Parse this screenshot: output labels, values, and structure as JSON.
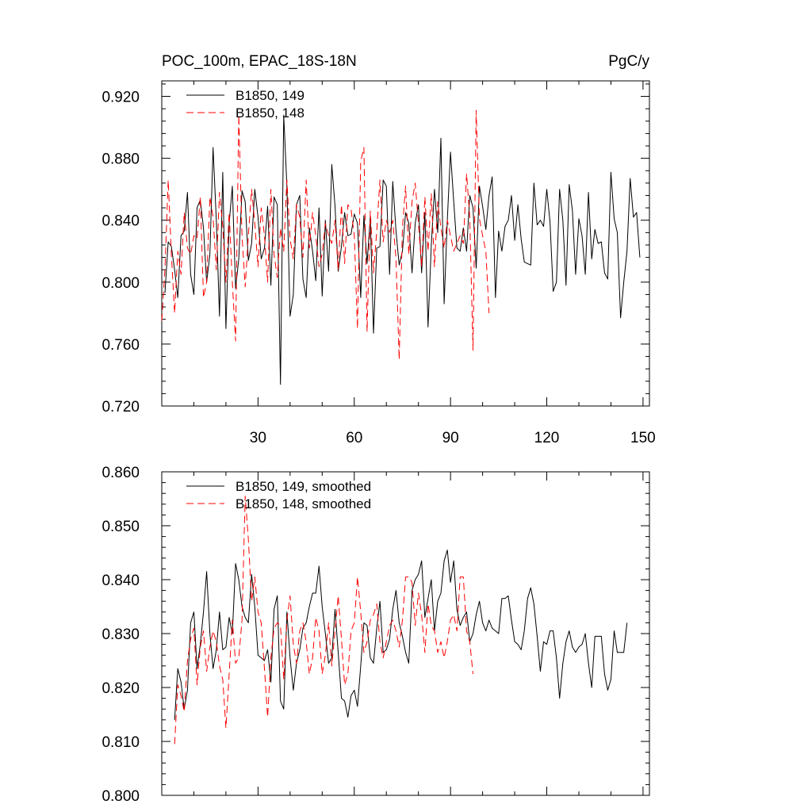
{
  "colors": {
    "s149": "#000000",
    "s148": "#ff0000"
  },
  "chart_data": [
    {
      "type": "line",
      "title_left": "POC_100m, EPAC_18S-18N",
      "title_right": "PgC/y",
      "xlabel": "",
      "ylabel": "",
      "xlim": [
        0,
        152
      ],
      "ylim": [
        0.72,
        0.93
      ],
      "xticks": [
        30,
        60,
        90,
        120,
        150
      ],
      "xtick_labels": [
        "30",
        "60",
        "90",
        "120",
        "150"
      ],
      "yticks": [
        0.72,
        0.76,
        0.8,
        0.84,
        0.88,
        0.92
      ],
      "ytick_labels": [
        "0.720",
        "0.760",
        "0.800",
        "0.840",
        "0.880",
        "0.920"
      ],
      "legend_position": "top-left",
      "series": [
        {
          "name": "B1850, 149",
          "dash": "solid",
          "x_start": 1,
          "values": [
            0.793,
            0.826,
            0.823,
            0.808,
            0.79,
            0.83,
            0.833,
            0.858,
            0.805,
            0.792,
            0.848,
            0.853,
            0.835,
            0.8,
            0.818,
            0.887,
            0.84,
            0.778,
            0.871,
            0.77,
            0.838,
            0.862,
            0.796,
            0.815,
            0.859,
            0.852,
            0.814,
            0.825,
            0.86,
            0.842,
            0.815,
            0.822,
            0.849,
            0.798,
            0.855,
            0.85,
            0.734,
            0.908,
            0.862,
            0.778,
            0.792,
            0.85,
            0.856,
            0.802,
            0.79,
            0.835,
            0.82,
            0.801,
            0.848,
            0.791,
            0.84,
            0.807,
            0.876,
            0.849,
            0.807,
            0.823,
            0.845,
            0.83,
            0.831,
            0.844,
            0.838,
            0.79,
            0.843,
            0.812,
            0.842,
            0.767,
            0.822,
            0.823,
            0.866,
            0.862,
            0.805,
            0.865,
            0.833,
            0.811,
            0.82,
            0.845,
            0.838,
            0.806,
            0.838,
            0.85,
            0.806,
            0.845,
            0.771,
            0.824,
            0.86,
            0.832,
            0.893,
            0.786,
            0.84,
            0.884,
            0.852,
            0.822,
            0.82,
            0.835,
            0.82,
            0.856,
            0.848,
            0.809,
            0.862,
            0.849,
            0.834,
            0.856,
            0.868,
            0.79,
            0.833,
            0.82,
            0.836,
            0.84,
            0.856,
            0.827,
            0.85,
            0.828,
            0.813,
            0.812,
            0.811,
            0.864,
            0.837,
            0.84,
            0.836,
            0.86,
            0.839,
            0.794,
            0.8,
            0.86,
            0.84,
            0.798,
            0.863,
            0.846,
            0.805,
            0.841,
            0.83,
            0.805,
            0.858,
            0.815,
            0.834,
            0.825,
            0.826,
            0.806,
            0.802,
            0.871,
            0.841,
            0.832,
            0.777,
            0.8,
            0.82,
            0.867,
            0.842,
            0.845,
            0.816
          ]
        },
        {
          "name": "B1850, 148",
          "dash": "dashed",
          "x_start": 0,
          "values": [
            0.775,
            0.808,
            0.866,
            0.818,
            0.78,
            0.82,
            0.805,
            0.845,
            0.822,
            0.818,
            0.83,
            0.828,
            0.855,
            0.79,
            0.8,
            0.855,
            0.842,
            0.808,
            0.858,
            0.836,
            0.8,
            0.845,
            0.8,
            0.762,
            0.908,
            0.83,
            0.797,
            0.83,
            0.86,
            0.838,
            0.81,
            0.848,
            0.83,
            0.8,
            0.86,
            0.818,
            0.803,
            0.835,
            0.82,
            0.866,
            0.828,
            0.815,
            0.85,
            0.842,
            0.816,
            0.866,
            0.822,
            0.845,
            0.83,
            0.81,
            0.818,
            0.838,
            0.83,
            0.825,
            0.84,
            0.808,
            0.85,
            0.812,
            0.85,
            0.847,
            0.83,
            0.77,
            0.878,
            0.887,
            0.768,
            0.846,
            0.806,
            0.833,
            0.866,
            0.826,
            0.84,
            0.832,
            0.84,
            0.815,
            0.75,
            0.835,
            0.862,
            0.818,
            0.852,
            0.864,
            0.838,
            0.81,
            0.855,
            0.82,
            0.857,
            0.81,
            0.852,
            0.835,
            0.822,
            0.84,
            0.83,
            0.82,
            0.825,
            0.83,
            0.825,
            0.87,
            0.842,
            0.756,
            0.911,
            0.841,
            0.83,
            0.82,
            0.78
          ]
        }
      ]
    },
    {
      "type": "line",
      "xlabel": "",
      "ylabel": "",
      "xlim": [
        0,
        152
      ],
      "ylim": [
        0.8,
        0.86
      ],
      "xticks": [
        30,
        60,
        90,
        120,
        150
      ],
      "yticks": [
        0.8,
        0.81,
        0.82,
        0.83,
        0.84,
        0.85,
        0.86
      ],
      "ytick_labels": [
        "0.800",
        "0.810",
        "0.820",
        "0.830",
        "0.840",
        "0.850",
        "0.860"
      ],
      "legend_position": "top-left",
      "series": [
        {
          "name": "B1850, 149, smoothed",
          "dash": "solid",
          "x_start": 4,
          "values": [
            0.814,
            0.8235,
            0.821,
            0.816,
            0.8195,
            0.832,
            0.834,
            0.8235,
            0.828,
            0.834,
            0.8415,
            0.83,
            0.8235,
            0.827,
            0.834,
            0.827,
            0.8275,
            0.833,
            0.83,
            0.843,
            0.84,
            0.835,
            0.833,
            0.832,
            0.841,
            0.835,
            0.826,
            0.8255,
            0.825,
            0.827,
            0.821,
            0.8345,
            0.837,
            0.8175,
            0.816,
            0.834,
            0.8255,
            0.8195,
            0.8245,
            0.827,
            0.831,
            0.832,
            0.835,
            0.8375,
            0.8375,
            0.8425,
            0.835,
            0.83,
            0.8245,
            0.8255,
            0.8345,
            0.8265,
            0.818,
            0.8175,
            0.8145,
            0.8185,
            0.8195,
            0.8165,
            0.824,
            0.832,
            0.8315,
            0.8255,
            0.8245,
            0.831,
            0.836,
            0.8265,
            0.827,
            0.829,
            0.8345,
            0.838,
            0.832,
            0.8295,
            0.8265,
            0.8245,
            0.838,
            0.84,
            0.841,
            0.8435,
            0.833,
            0.8365,
            0.84,
            0.8305,
            0.836,
            0.8375,
            0.8435,
            0.8455,
            0.8395,
            0.8435,
            0.8345,
            0.8315,
            0.833,
            0.834,
            0.8285,
            0.83,
            0.8335,
            0.836,
            0.832,
            0.8305,
            0.8325,
            0.831,
            0.8305,
            0.83,
            0.8365,
            0.8365,
            0.837,
            0.8325,
            0.8285,
            0.828,
            0.827,
            0.8305,
            0.8365,
            0.8385,
            0.8355,
            0.8295,
            0.823,
            0.8285,
            0.828,
            0.8305,
            0.8305,
            0.8255,
            0.818,
            0.8245,
            0.8285,
            0.8305,
            0.8275,
            0.8265,
            0.8275,
            0.828,
            0.83,
            0.8245,
            0.82,
            0.8295,
            0.8295,
            0.8295,
            0.8225,
            0.8195,
            0.8215,
            0.8305,
            0.8265,
            0.8265,
            0.8265,
            0.832
          ]
        },
        {
          "name": "B1850, 148, smoothed",
          "dash": "dashed",
          "x_start": 4,
          "values": [
            0.8095,
            0.8205,
            0.8185,
            0.8155,
            0.825,
            0.829,
            0.831,
            0.8205,
            0.8275,
            0.8305,
            0.823,
            0.8275,
            0.8305,
            0.8285,
            0.824,
            0.8215,
            0.8125,
            0.8225,
            0.8325,
            0.8245,
            0.8255,
            0.8325,
            0.8555,
            0.8475,
            0.836,
            0.8405,
            0.834,
            0.832,
            0.8235,
            0.8145,
            0.8255,
            0.831,
            0.832,
            0.8315,
            0.8215,
            0.8325,
            0.837,
            0.828,
            0.8245,
            0.8305,
            0.832,
            0.8285,
            0.8225,
            0.8255,
            0.833,
            0.8305,
            0.8225,
            0.826,
            0.832,
            0.824,
            0.8305,
            0.837,
            0.829,
            0.8205,
            0.8225,
            0.8305,
            0.832,
            0.8405,
            0.834,
            0.8265,
            0.8285,
            0.8325,
            0.8335,
            0.8355,
            0.8285,
            0.8255,
            0.8285,
            0.8315,
            0.8325,
            0.8305,
            0.8275,
            0.8325,
            0.8405,
            0.8405,
            0.8395,
            0.8315,
            0.8375,
            0.8335,
            0.8265,
            0.8355,
            0.8315,
            0.8305,
            0.8265,
            0.8285,
            0.8255,
            0.8285,
            0.8325,
            0.8335,
            0.8305,
            0.8405,
            0.8405,
            0.8305,
            0.8285,
            0.8225
          ]
        }
      ]
    }
  ]
}
